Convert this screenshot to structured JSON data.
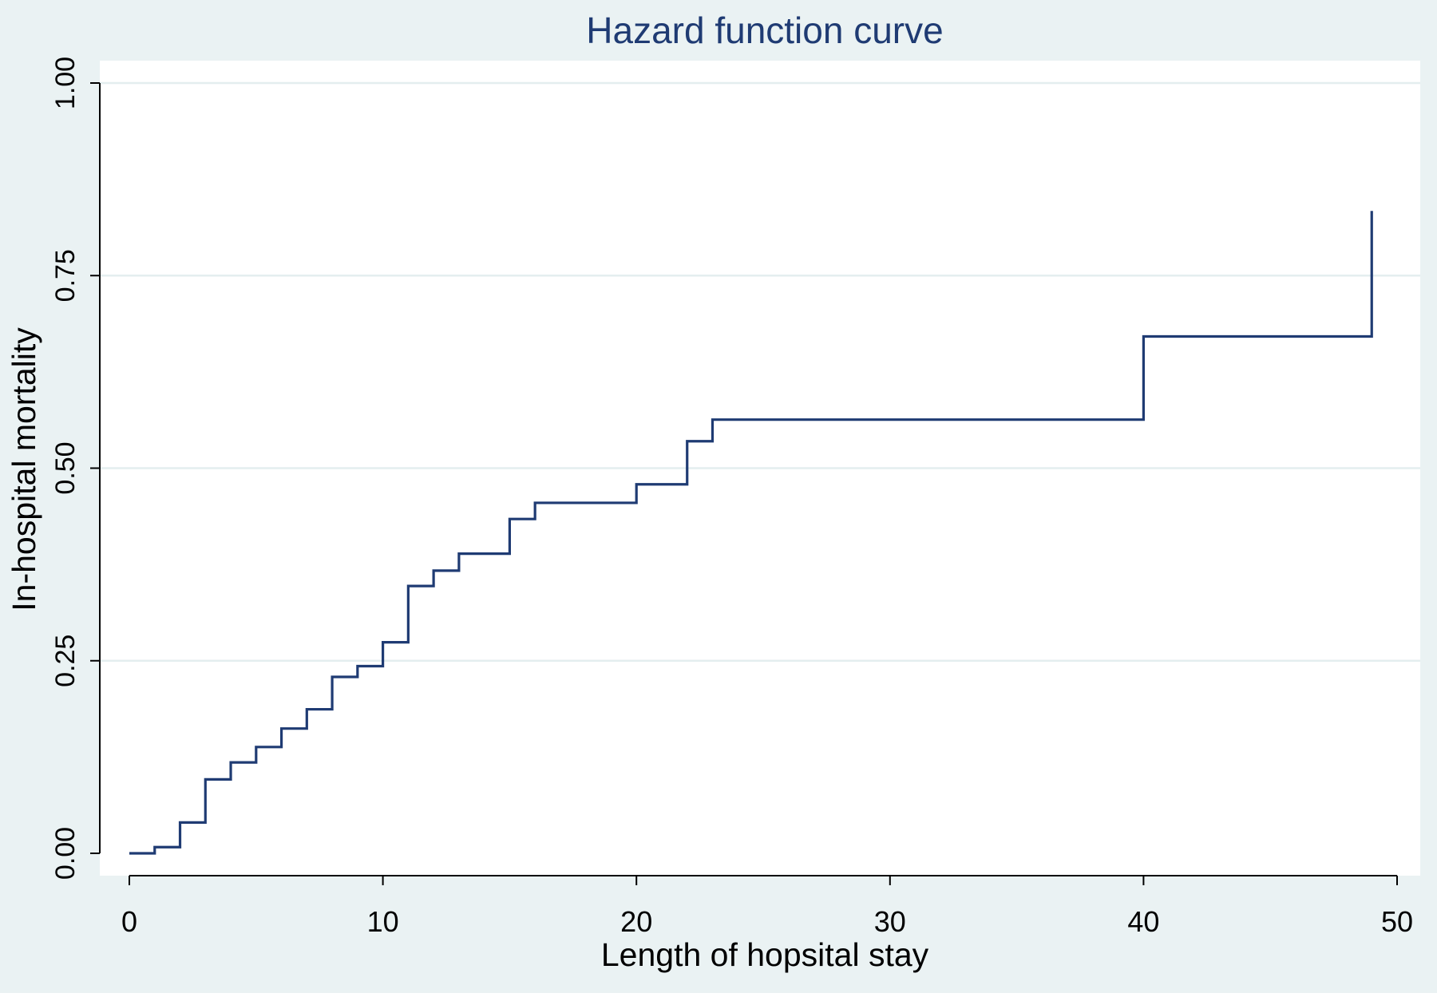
{
  "chart_data": {
    "type": "line",
    "step": true,
    "title": "Hazard function  curve",
    "xlabel": "Length of hopsital stay",
    "ylabel": "In-hospital mortality",
    "xlim": [
      0,
      50
    ],
    "ylim": [
      0,
      1
    ],
    "x_ticks": [
      0,
      10,
      20,
      30,
      40,
      50
    ],
    "x_tick_labels": [
      "0",
      "10",
      "20",
      "30",
      "40",
      "50"
    ],
    "y_ticks": [
      0,
      0.25,
      0.5,
      0.75,
      1.0
    ],
    "y_tick_labels": [
      "0.00",
      "0.25",
      "0.50",
      "0.75",
      "1.00"
    ],
    "grid": "horizontal",
    "legend": "none",
    "series": [
      {
        "x": [
          0,
          1,
          2,
          3,
          4,
          5,
          6,
          7,
          8,
          9,
          10,
          11,
          12,
          13,
          15,
          16,
          20,
          22,
          23,
          40,
          49
        ],
        "y": [
          0.0,
          0.008,
          0.04,
          0.096,
          0.118,
          0.138,
          0.162,
          0.187,
          0.229,
          0.243,
          0.274,
          0.347,
          0.367,
          0.389,
          0.434,
          0.455,
          0.479,
          0.535,
          0.563,
          0.671,
          0.834
        ]
      }
    ],
    "colors": {
      "line": "#1f3b73",
      "title": "#1f3b73",
      "outer_background": "#eaf2f3",
      "plot_background": "#ffffff",
      "grid": "#e4eeef",
      "axis": "#000000"
    }
  }
}
